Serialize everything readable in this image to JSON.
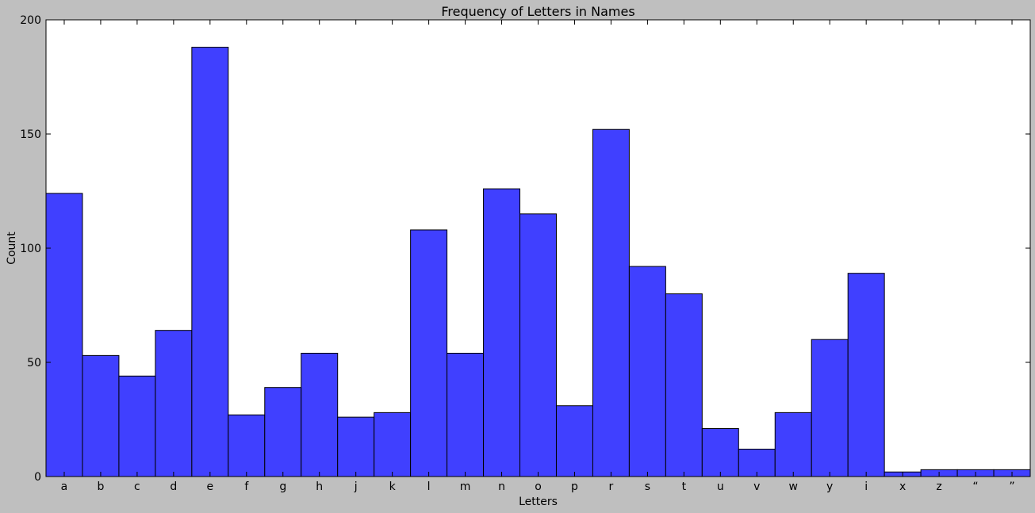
{
  "chart_data": {
    "type": "bar",
    "title": "Frequency of Letters in Names",
    "xlabel": "Letters",
    "ylabel": "Count",
    "ylim": [
      0,
      200
    ],
    "yticks": [
      0,
      50,
      100,
      150,
      200
    ],
    "grid": false,
    "legend": "none",
    "categories": [
      "a",
      "b",
      "c",
      "d",
      "e",
      "f",
      "g",
      "h",
      "j",
      "k",
      "l",
      "m",
      "n",
      "o",
      "p",
      "r",
      "s",
      "t",
      "u",
      "v",
      "w",
      "y",
      "i",
      "x",
      "z",
      "“",
      "”"
    ],
    "values": [
      124,
      53,
      44,
      64,
      188,
      27,
      39,
      54,
      26,
      28,
      108,
      54,
      126,
      115,
      31,
      152,
      92,
      80,
      21,
      12,
      28,
      60,
      89,
      2,
      3,
      3,
      3
    ],
    "bar_color": "#4040ff",
    "edge_color": "#000000",
    "plot_background": "#ffffff",
    "figure_background": "#bfbfbf"
  }
}
